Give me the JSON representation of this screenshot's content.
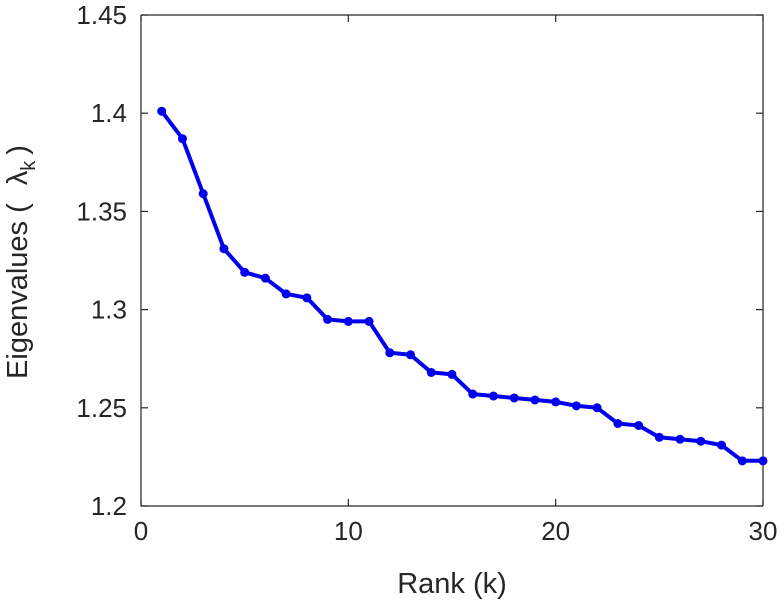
{
  "chart_data": {
    "type": "line",
    "xlabel": "Rank (k)",
    "ylabel_main": "Eigenvalues (",
    "ylabel_symbol": "λ",
    "ylabel_sub": "k",
    "ylabel_close": ")",
    "xlim": [
      0,
      30
    ],
    "ylim": [
      1.2,
      1.45
    ],
    "xticks": [
      0,
      10,
      20,
      30
    ],
    "xtick_labels": [
      "0",
      "10",
      "20",
      "30"
    ],
    "yticks": [
      1.2,
      1.25,
      1.3,
      1.35,
      1.4,
      1.45
    ],
    "ytick_labels": [
      "1.2",
      "1.25",
      "1.3",
      "1.35",
      "1.4",
      "1.45"
    ],
    "grid": false,
    "line_color": "#0000ee",
    "series": [
      {
        "x": [
          1,
          2,
          3,
          4,
          5,
          6,
          7,
          8,
          9,
          10,
          11,
          12,
          13,
          14,
          15,
          16,
          17,
          18,
          19,
          20,
          21,
          22,
          23,
          24,
          25,
          26,
          27,
          28,
          29,
          30
        ],
        "values": [
          1.401,
          1.387,
          1.359,
          1.331,
          1.319,
          1.316,
          1.308,
          1.306,
          1.295,
          1.294,
          1.294,
          1.278,
          1.277,
          1.268,
          1.267,
          1.257,
          1.256,
          1.255,
          1.254,
          1.253,
          1.251,
          1.25,
          1.242,
          1.241,
          1.235,
          1.234,
          1.233,
          1.231,
          1.223,
          1.223
        ]
      }
    ]
  }
}
